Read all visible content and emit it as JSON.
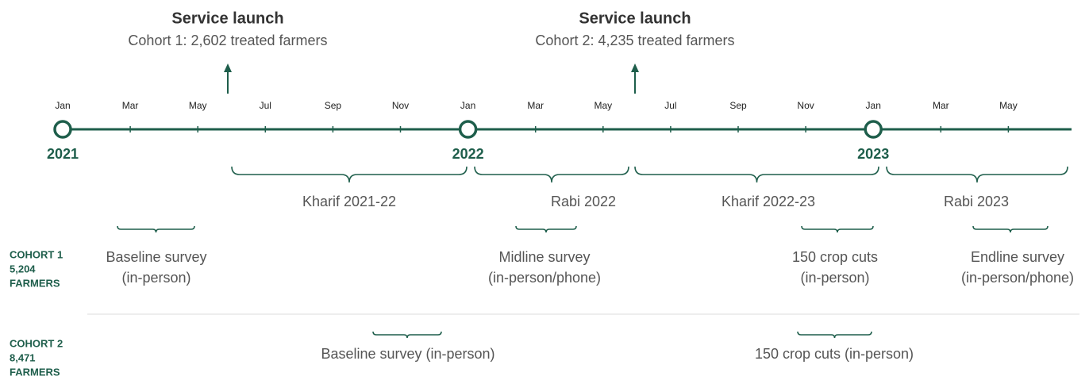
{
  "launches": [
    {
      "title": "Service launch",
      "subtitle": "Cohort 1: 2,602 treated farmers"
    },
    {
      "title": "Service launch",
      "subtitle": "Cohort 2: 4,235 treated farmers"
    }
  ],
  "months": [
    "Jan",
    "Mar",
    "May",
    "Jul",
    "Sep",
    "Nov",
    "Jan",
    "Mar",
    "May",
    "Jul",
    "Sep",
    "Nov",
    "Jan",
    "Mar",
    "May"
  ],
  "years": [
    "2021",
    "2022",
    "2023"
  ],
  "seasons": [
    "Kharif 2021-22",
    "Rabi 2022",
    "Kharif 2022-23",
    "Rabi 2023"
  ],
  "cohorts": [
    {
      "label": [
        "COHORT 1",
        "5,204",
        "FARMERS"
      ],
      "events": [
        [
          "Baseline survey",
          "(in-person)"
        ],
        [
          "Midline survey",
          "(in-person/phone)"
        ],
        [
          "150 crop cuts",
          "(in-person)"
        ],
        [
          "Endline survey",
          "(in-person/phone)"
        ]
      ]
    },
    {
      "label": [
        "COHORT 2",
        "8,471",
        "FARMERS"
      ],
      "events": [
        [
          "Baseline survey (in-person)"
        ],
        [
          "150 crop cuts (in-person)"
        ]
      ]
    }
  ]
}
